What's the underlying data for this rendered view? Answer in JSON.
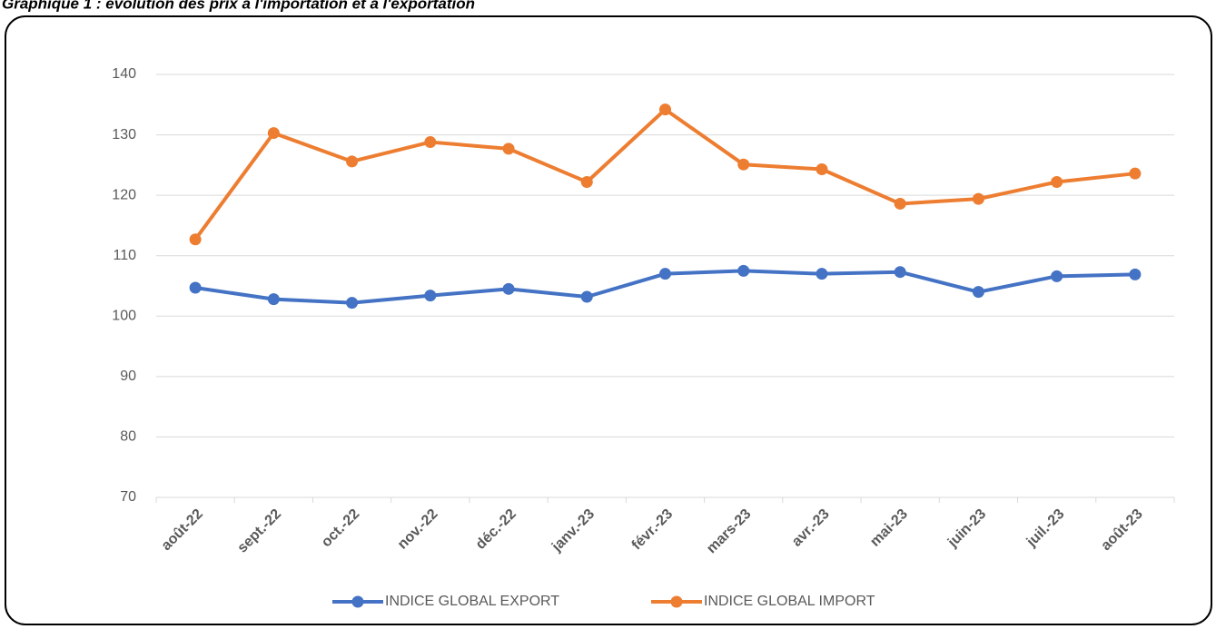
{
  "chart_data": {
    "type": "line",
    "title": "Graphique 1 : évolution des prix à l'importation et à l'exportation",
    "categories": [
      "août-22",
      "sept.-22",
      "oct.-22",
      "nov.-22",
      "déc.-22",
      "janv.-23",
      "févr.-23",
      "mars-23",
      "avr.-23",
      "mai-23",
      "juin-23",
      "juil.-23",
      "août-23"
    ],
    "series": [
      {
        "name": "INDICE GLOBAL EXPORT",
        "color": "#4472c4",
        "values": [
          104.7,
          102.8,
          102.2,
          103.4,
          104.5,
          103.2,
          107.0,
          107.5,
          107.0,
          107.3,
          104.0,
          106.6,
          106.9
        ]
      },
      {
        "name": "INDICE GLOBAL IMPORT",
        "color": "#ed7d31",
        "values": [
          112.7,
          130.3,
          125.6,
          128.8,
          127.7,
          122.2,
          134.2,
          125.1,
          124.3,
          118.6,
          119.4,
          122.2,
          123.6
        ]
      }
    ],
    "ylim": [
      70,
      140
    ],
    "yticks": [
      70,
      80,
      90,
      100,
      110,
      120,
      130,
      140
    ],
    "grid": true,
    "legend": "bottom"
  }
}
